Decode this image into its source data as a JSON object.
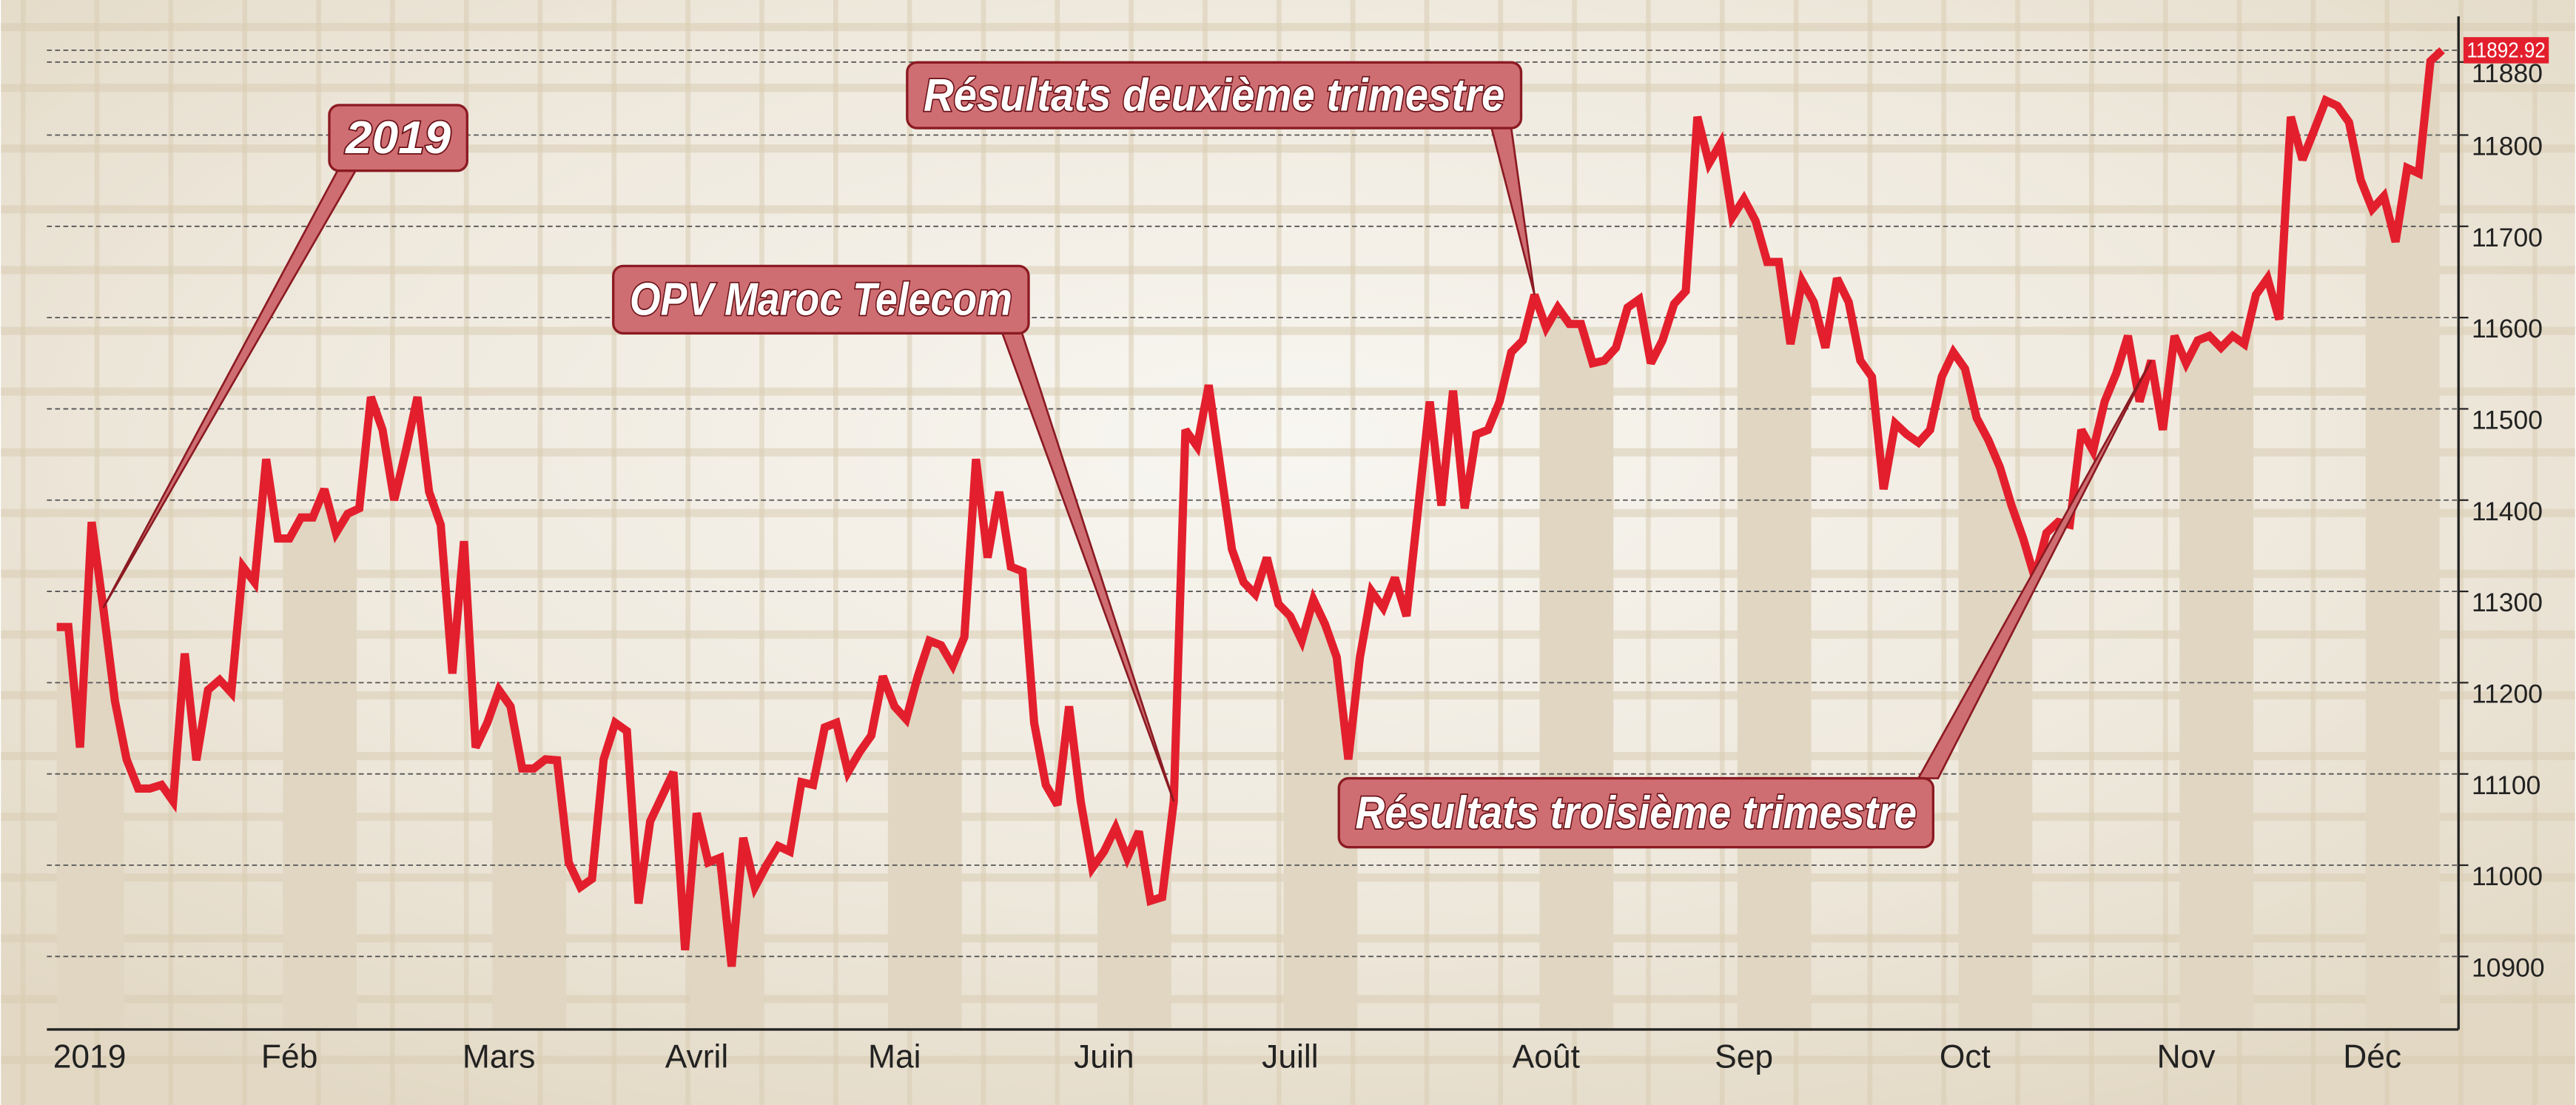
{
  "chart_data": {
    "type": "line",
    "color": "#e31f2d",
    "annotations": [
      "2019",
      "Résultats deuxième trimestre",
      "OPV Maroc Telecom",
      "Résultats troisième trimestre"
    ],
    "categories": [
      "2019",
      null,
      null,
      null,
      null,
      null,
      null,
      null,
      null,
      null,
      null,
      null,
      null,
      null,
      null,
      null,
      null,
      null,
      null,
      null,
      "Féb",
      null,
      null,
      null,
      null,
      null,
      null,
      null,
      null,
      null,
      null,
      null,
      null,
      null,
      null,
      null,
      null,
      null,
      "Mars",
      null,
      null,
      null,
      null,
      null,
      null,
      null,
      null,
      null,
      null,
      null,
      null,
      null,
      null,
      null,
      null,
      "Avril",
      null,
      null,
      null,
      null,
      null,
      null,
      null,
      null,
      null,
      null,
      null,
      null,
      null,
      null,
      null,
      null,
      "Mai",
      null,
      null,
      null,
      null,
      null,
      null,
      null,
      null,
      null,
      null,
      null,
      null,
      null,
      null,
      null,
      null,
      null,
      "Juin",
      null,
      null,
      null,
      null,
      null,
      null,
      null,
      null,
      null,
      null,
      null,
      null,
      null,
      null,
      null,
      "Juill",
      null,
      null,
      null,
      null,
      null,
      null,
      null,
      null,
      null,
      null,
      null,
      null,
      null,
      null,
      null,
      null,
      null,
      null,
      null,
      null,
      null,
      "Août",
      null,
      null,
      null,
      null,
      null,
      null,
      null,
      null,
      null,
      null,
      null,
      null,
      null,
      null,
      null,
      null,
      "Sep",
      null,
      null,
      null,
      null,
      null,
      null,
      null,
      null,
      null,
      null,
      null,
      null,
      null,
      null,
      null,
      null,
      null,
      null,
      "Oct",
      null,
      null,
      null,
      null,
      null,
      null,
      null,
      null,
      null,
      null,
      null,
      null,
      null,
      null,
      null,
      null,
      null,
      null,
      "Nov",
      null,
      null,
      null,
      null,
      null,
      null,
      null,
      null,
      null,
      null,
      null,
      null,
      null,
      null,
      null,
      "Déc",
      null,
      null,
      null,
      null,
      null,
      null
    ],
    "values": [
      11261,
      11261,
      11129,
      11376,
      11282,
      11180,
      11116,
      11084,
      11084,
      11088,
      11070,
      11232,
      11115,
      11192,
      11203,
      11189,
      11327,
      11310,
      11445,
      11358,
      11358,
      11381,
      11381,
      11412,
      11364,
      11385,
      11391,
      11513,
      11477,
      11400,
      11454,
      11513,
      11409,
      11373,
      11210,
      11355,
      11129,
      11156,
      11192,
      11174,
      11106,
      11106,
      11116,
      11115,
      11003,
      10976,
      10985,
      11116,
      11156,
      11147,
      10958,
      11048,
      11075,
      11102,
      10907,
      11057,
      11003,
      11008,
      10889,
      11030,
      10976,
      11000,
      11021,
      11015,
      11091,
      11088,
      11151,
      11156,
      11102,
      11124,
      11142,
      11207,
      11174,
      11160,
      11207,
      11246,
      11241,
      11219,
      11250,
      11445,
      11337,
      11409,
      11327,
      11322,
      11156,
      11088,
      11066,
      11174,
      11070,
      10997,
      11015,
      11041,
      11008,
      11037,
      10961,
      10965,
      11070,
      11477,
      11459,
      11526,
      11436,
      11346,
      11310,
      11297,
      11337,
      11286,
      11273,
      11246,
      11291,
      11264,
      11228,
      11116,
      11228,
      11300,
      11282,
      11315,
      11273,
      11391,
      11508,
      11394,
      11520,
      11391,
      11472,
      11477,
      11508,
      11562,
      11575,
      11625,
      11589,
      11611,
      11593,
      11593,
      11550,
      11553,
      11567,
      11611,
      11620,
      11550,
      11575,
      11615,
      11629,
      11820,
      11769,
      11791,
      11710,
      11730,
      11706,
      11661,
      11661,
      11571,
      11640,
      11617,
      11567,
      11643,
      11617,
      11553,
      11535,
      11412,
      11484,
      11472,
      11463,
      11477,
      11535,
      11562,
      11544,
      11490,
      11466,
      11436,
      11394,
      11358,
      11315,
      11364,
      11376,
      11373,
      11477,
      11454,
      11508,
      11539,
      11580,
      11508,
      11553,
      11477,
      11580,
      11550,
      11575,
      11580,
      11567,
      11580,
      11571,
      11625,
      11643,
      11598,
      11820,
      11773,
      11805,
      11838,
      11832,
      11814,
      11751,
      11719,
      11733,
      11683,
      11764,
      11758,
      11881,
      11892.92
    ],
    "ylim": [
      10820,
      11930
    ],
    "yticks": [
      10900,
      11000,
      11100,
      11200,
      11300,
      11400,
      11500,
      11600,
      11700,
      11800,
      11880
    ],
    "grid": true
  }
}
